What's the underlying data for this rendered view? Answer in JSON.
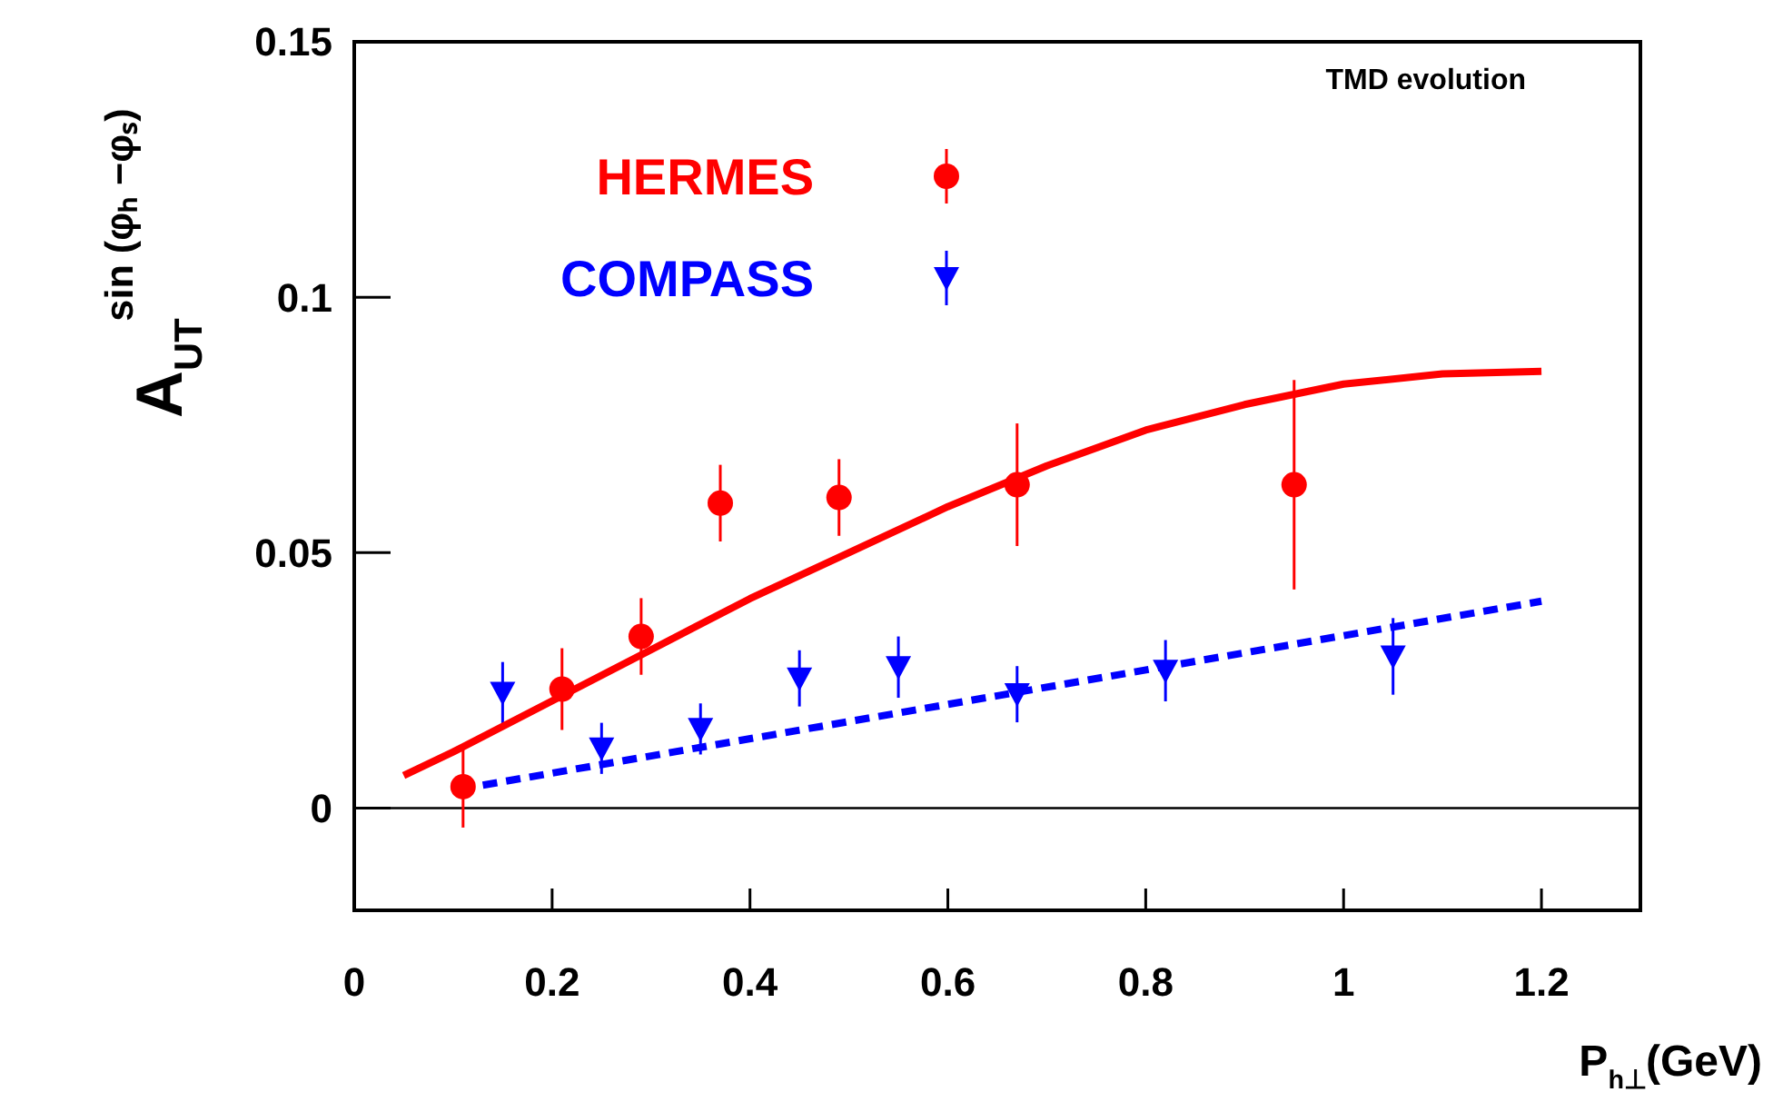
{
  "chart_data": {
    "type": "scatter",
    "xlabel": "P$_{h⊥}$(GeV)",
    "ylabel": "A$_{UT}$$^{sin (φₕ −φₛ)}$",
    "annotations": [
      "TMD evolution"
    ],
    "xlim": [
      0,
      1.3
    ],
    "ylim": [
      -0.02,
      0.15
    ],
    "xticks": [
      0,
      0.2,
      0.4,
      0.6,
      0.8,
      1,
      1.2
    ],
    "yticks": [
      0,
      0.05,
      0.1,
      0.15
    ],
    "grid": false,
    "legend": "top left",
    "ref_lines": [
      {
        "axis": "y",
        "value": 0,
        "color": "#000000"
      }
    ],
    "series": [
      {
        "name": "HERMES",
        "marker": "circle",
        "color": "#ff0000",
        "x": [
          0.11,
          0.21,
          0.29,
          0.37,
          0.49,
          0.67,
          0.95
        ],
        "values": [
          0.0042,
          0.0233,
          0.0336,
          0.0597,
          0.0608,
          0.0633,
          0.0633
        ],
        "errors": [
          0.008,
          0.008,
          0.0075,
          0.0075,
          0.0075,
          0.012,
          0.0205
        ]
      },
      {
        "name": "COMPASS",
        "marker": "triangle",
        "color": "#0000ff",
        "x": [
          0.15,
          0.25,
          0.35,
          0.45,
          0.55,
          0.67,
          0.82,
          1.05
        ],
        "values": [
          0.0226,
          0.0117,
          0.0155,
          0.0254,
          0.0276,
          0.0223,
          0.0269,
          0.0297
        ],
        "errors": [
          0.006,
          0.005,
          0.005,
          0.0055,
          0.006,
          0.0055,
          0.006,
          0.0075
        ]
      },
      {
        "type": "line",
        "line_style": "solid",
        "color": "#ff0000",
        "x": [
          0.05,
          0.1,
          0.2,
          0.3,
          0.4,
          0.5,
          0.6,
          0.7,
          0.8,
          0.9,
          1.0,
          1.1,
          1.2
        ],
        "values": [
          0.0064,
          0.011,
          0.021,
          0.031,
          0.041,
          0.05,
          0.059,
          0.067,
          0.074,
          0.079,
          0.083,
          0.085,
          0.0855
        ]
      },
      {
        "type": "line",
        "line_style": "dashed",
        "color": "#0000ff",
        "x": [
          0.13,
          1.2
        ],
        "values": [
          0.0045,
          0.0405
        ]
      }
    ]
  }
}
